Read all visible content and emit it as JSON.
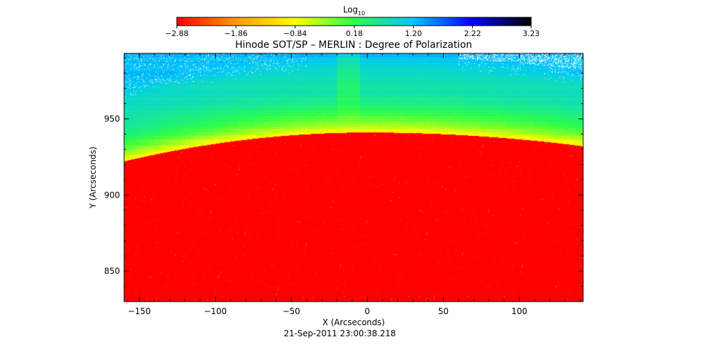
{
  "chart_data": {
    "type": "heatmap",
    "title": "Hinode SOT/SP – MERLIN : Degree of Polarization",
    "xlabel": "X (Arcseconds)",
    "ylabel": "Y (Arcseconds)",
    "footer": "21-Sep-2011 23:00:38.218",
    "xlim": [
      -160,
      142
    ],
    "ylim": [
      830,
      993
    ],
    "x_ticks": [
      -150,
      -100,
      -50,
      0,
      50,
      100
    ],
    "y_ticks": [
      850,
      900,
      950
    ],
    "x_tick_labels": [
      "−150",
      "−100",
      "−50",
      "0",
      "50",
      "100"
    ],
    "y_tick_labels": [
      "850",
      "900",
      "950"
    ],
    "colorbar": {
      "label_base": "Log",
      "label_sub": "10",
      "min": -2.88,
      "max": 3.23,
      "ticks": [
        -2.88,
        -1.86,
        -0.84,
        0.18,
        1.2,
        2.22,
        3.23
      ],
      "tick_labels": [
        "−2.88",
        "−1.86",
        "−0.84",
        "0.18",
        "1.20",
        "2.22",
        "3.23"
      ],
      "colormap": [
        "#ff0000",
        "#ff9d00",
        "#ffff00",
        "#2bff49",
        "#00c8ff",
        "#0000ff",
        "#000000"
      ]
    },
    "limb": {
      "y_at_x_left": 922,
      "y_at_x_center": 941,
      "y_at_x_right": 932,
      "center_x": 0
    }
  }
}
